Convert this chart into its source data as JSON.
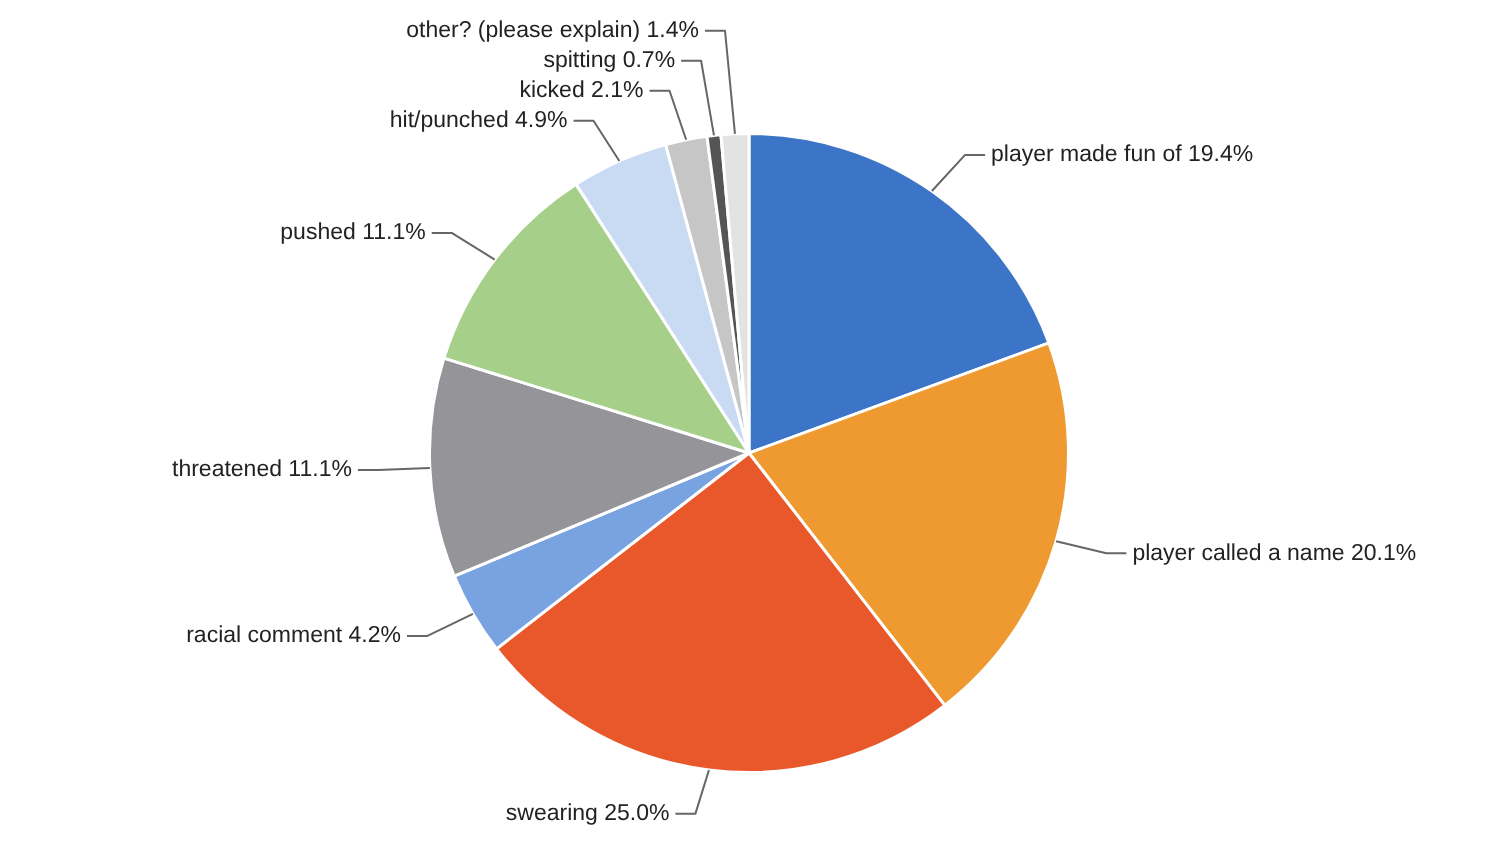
{
  "chart_data": {
    "type": "pie",
    "categories": [
      "player made fun of",
      "player called a name",
      "swearing",
      "racial comment",
      "threatened",
      "pushed",
      "hit/punched",
      "kicked",
      "spitting",
      "other? (please explain)"
    ],
    "values": [
      19.4,
      20.1,
      25.0,
      4.2,
      11.1,
      11.1,
      4.9,
      2.1,
      0.7,
      1.4
    ],
    "colors": [
      "#3c74c8",
      "#ee9a30",
      "#e8582a",
      "#78a3e0",
      "#949499",
      "#a6d08a",
      "#c9daf3",
      "#c6c6c6",
      "#555555",
      "#e3e3e3"
    ],
    "value_labels": [
      "19.4%",
      "20.1%",
      "25.0%",
      "4.2%",
      "11.1%",
      "11.1%",
      "4.9%",
      "2.1%",
      "0.7%",
      "1.4%"
    ],
    "legend": false
  }
}
